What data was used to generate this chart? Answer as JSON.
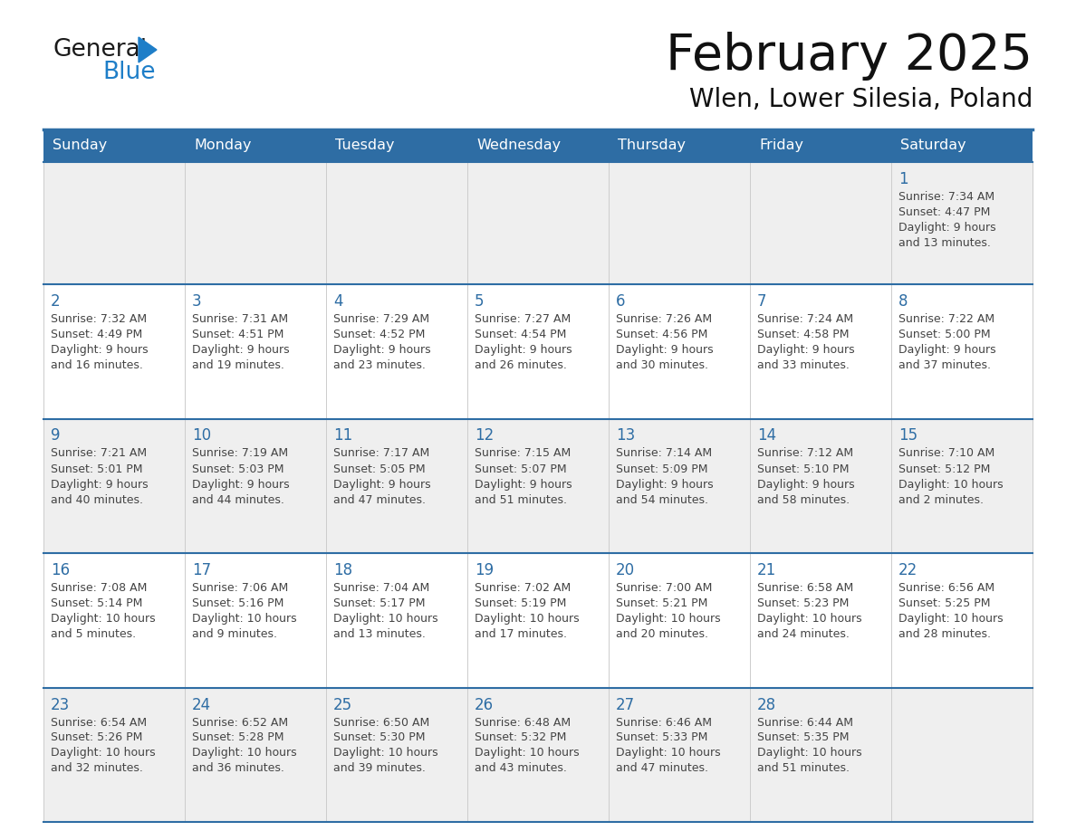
{
  "title": "February 2025",
  "subtitle": "Wlen, Lower Silesia, Poland",
  "days_of_week": [
    "Sunday",
    "Monday",
    "Tuesday",
    "Wednesday",
    "Thursday",
    "Friday",
    "Saturday"
  ],
  "header_bg": "#2E6DA4",
  "header_text_color": "#FFFFFF",
  "row_bg_odd": "#EFEFEF",
  "row_bg_even": "#FFFFFF",
  "separator_color": "#2E6DA4",
  "day_number_color": "#2E6DA4",
  "info_text_color": "#444444",
  "title_color": "#111111",
  "subtitle_color": "#111111",
  "blue_color": "#1E7EC8",
  "logo_black": "#1a1a1a",
  "calendar_data": [
    {
      "day": 1,
      "col": 6,
      "row": 0,
      "sunrise": "7:34 AM",
      "sunset": "4:47 PM",
      "daylight_h": "9 hours",
      "daylight_m": "and 13 minutes."
    },
    {
      "day": 2,
      "col": 0,
      "row": 1,
      "sunrise": "7:32 AM",
      "sunset": "4:49 PM",
      "daylight_h": "9 hours",
      "daylight_m": "and 16 minutes."
    },
    {
      "day": 3,
      "col": 1,
      "row": 1,
      "sunrise": "7:31 AM",
      "sunset": "4:51 PM",
      "daylight_h": "9 hours",
      "daylight_m": "and 19 minutes."
    },
    {
      "day": 4,
      "col": 2,
      "row": 1,
      "sunrise": "7:29 AM",
      "sunset": "4:52 PM",
      "daylight_h": "9 hours",
      "daylight_m": "and 23 minutes."
    },
    {
      "day": 5,
      "col": 3,
      "row": 1,
      "sunrise": "7:27 AM",
      "sunset": "4:54 PM",
      "daylight_h": "9 hours",
      "daylight_m": "and 26 minutes."
    },
    {
      "day": 6,
      "col": 4,
      "row": 1,
      "sunrise": "7:26 AM",
      "sunset": "4:56 PM",
      "daylight_h": "9 hours",
      "daylight_m": "and 30 minutes."
    },
    {
      "day": 7,
      "col": 5,
      "row": 1,
      "sunrise": "7:24 AM",
      "sunset": "4:58 PM",
      "daylight_h": "9 hours",
      "daylight_m": "and 33 minutes."
    },
    {
      "day": 8,
      "col": 6,
      "row": 1,
      "sunrise": "7:22 AM",
      "sunset": "5:00 PM",
      "daylight_h": "9 hours",
      "daylight_m": "and 37 minutes."
    },
    {
      "day": 9,
      "col": 0,
      "row": 2,
      "sunrise": "7:21 AM",
      "sunset": "5:01 PM",
      "daylight_h": "9 hours",
      "daylight_m": "and 40 minutes."
    },
    {
      "day": 10,
      "col": 1,
      "row": 2,
      "sunrise": "7:19 AM",
      "sunset": "5:03 PM",
      "daylight_h": "9 hours",
      "daylight_m": "and 44 minutes."
    },
    {
      "day": 11,
      "col": 2,
      "row": 2,
      "sunrise": "7:17 AM",
      "sunset": "5:05 PM",
      "daylight_h": "9 hours",
      "daylight_m": "and 47 minutes."
    },
    {
      "day": 12,
      "col": 3,
      "row": 2,
      "sunrise": "7:15 AM",
      "sunset": "5:07 PM",
      "daylight_h": "9 hours",
      "daylight_m": "and 51 minutes."
    },
    {
      "day": 13,
      "col": 4,
      "row": 2,
      "sunrise": "7:14 AM",
      "sunset": "5:09 PM",
      "daylight_h": "9 hours",
      "daylight_m": "and 54 minutes."
    },
    {
      "day": 14,
      "col": 5,
      "row": 2,
      "sunrise": "7:12 AM",
      "sunset": "5:10 PM",
      "daylight_h": "9 hours",
      "daylight_m": "and 58 minutes."
    },
    {
      "day": 15,
      "col": 6,
      "row": 2,
      "sunrise": "7:10 AM",
      "sunset": "5:12 PM",
      "daylight_h": "10 hours",
      "daylight_m": "and 2 minutes."
    },
    {
      "day": 16,
      "col": 0,
      "row": 3,
      "sunrise": "7:08 AM",
      "sunset": "5:14 PM",
      "daylight_h": "10 hours",
      "daylight_m": "and 5 minutes."
    },
    {
      "day": 17,
      "col": 1,
      "row": 3,
      "sunrise": "7:06 AM",
      "sunset": "5:16 PM",
      "daylight_h": "10 hours",
      "daylight_m": "and 9 minutes."
    },
    {
      "day": 18,
      "col": 2,
      "row": 3,
      "sunrise": "7:04 AM",
      "sunset": "5:17 PM",
      "daylight_h": "10 hours",
      "daylight_m": "and 13 minutes."
    },
    {
      "day": 19,
      "col": 3,
      "row": 3,
      "sunrise": "7:02 AM",
      "sunset": "5:19 PM",
      "daylight_h": "10 hours",
      "daylight_m": "and 17 minutes."
    },
    {
      "day": 20,
      "col": 4,
      "row": 3,
      "sunrise": "7:00 AM",
      "sunset": "5:21 PM",
      "daylight_h": "10 hours",
      "daylight_m": "and 20 minutes."
    },
    {
      "day": 21,
      "col": 5,
      "row": 3,
      "sunrise": "6:58 AM",
      "sunset": "5:23 PM",
      "daylight_h": "10 hours",
      "daylight_m": "and 24 minutes."
    },
    {
      "day": 22,
      "col": 6,
      "row": 3,
      "sunrise": "6:56 AM",
      "sunset": "5:25 PM",
      "daylight_h": "10 hours",
      "daylight_m": "and 28 minutes."
    },
    {
      "day": 23,
      "col": 0,
      "row": 4,
      "sunrise": "6:54 AM",
      "sunset": "5:26 PM",
      "daylight_h": "10 hours",
      "daylight_m": "and 32 minutes."
    },
    {
      "day": 24,
      "col": 1,
      "row": 4,
      "sunrise": "6:52 AM",
      "sunset": "5:28 PM",
      "daylight_h": "10 hours",
      "daylight_m": "and 36 minutes."
    },
    {
      "day": 25,
      "col": 2,
      "row": 4,
      "sunrise": "6:50 AM",
      "sunset": "5:30 PM",
      "daylight_h": "10 hours",
      "daylight_m": "and 39 minutes."
    },
    {
      "day": 26,
      "col": 3,
      "row": 4,
      "sunrise": "6:48 AM",
      "sunset": "5:32 PM",
      "daylight_h": "10 hours",
      "daylight_m": "and 43 minutes."
    },
    {
      "day": 27,
      "col": 4,
      "row": 4,
      "sunrise": "6:46 AM",
      "sunset": "5:33 PM",
      "daylight_h": "10 hours",
      "daylight_m": "and 47 minutes."
    },
    {
      "day": 28,
      "col": 5,
      "row": 4,
      "sunrise": "6:44 AM",
      "sunset": "5:35 PM",
      "daylight_h": "10 hours",
      "daylight_m": "and 51 minutes."
    }
  ],
  "num_rows": 5,
  "num_cols": 7
}
